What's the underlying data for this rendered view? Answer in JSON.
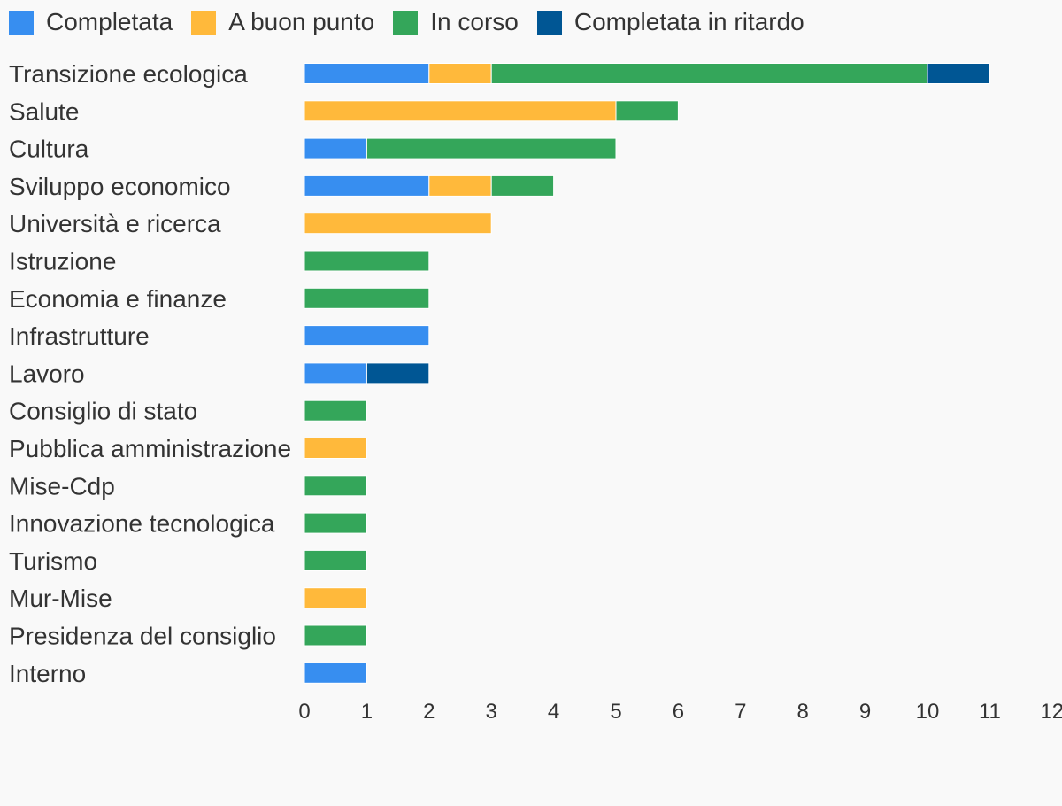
{
  "chart_data": {
    "type": "bar",
    "orientation": "horizontal",
    "stacked": true,
    "categories": [
      "Transizione ecologica",
      "Salute",
      "Cultura",
      "Sviluppo economico",
      "Università e ricerca",
      "Istruzione",
      "Economia e finanze",
      "Infrastrutture",
      "Lavoro",
      "Consiglio di stato",
      "Pubblica amministrazione",
      "Mise-Cdp",
      "Innovazione tecnologica",
      "Turismo",
      "Mur-Mise",
      "Presidenza del consiglio",
      "Interno"
    ],
    "series": [
      {
        "name": "Completata",
        "color": "#378ef0",
        "values": [
          2,
          0,
          1,
          2,
          0,
          0,
          0,
          2,
          1,
          0,
          0,
          0,
          0,
          0,
          0,
          0,
          1
        ]
      },
      {
        "name": "A buon punto",
        "color": "#ffb93b",
        "values": [
          1,
          5,
          0,
          1,
          3,
          0,
          0,
          0,
          0,
          0,
          1,
          0,
          0,
          0,
          1,
          0,
          0
        ]
      },
      {
        "name": "In corso",
        "color": "#34a65a",
        "values": [
          7,
          1,
          4,
          1,
          0,
          2,
          2,
          0,
          0,
          1,
          0,
          1,
          1,
          1,
          0,
          1,
          0
        ]
      },
      {
        "name": "Completata in ritardo",
        "color": "#005694",
        "values": [
          1,
          0,
          0,
          0,
          0,
          0,
          0,
          0,
          1,
          0,
          0,
          0,
          0,
          0,
          0,
          0,
          0
        ]
      }
    ],
    "xlim": [
      0,
      12
    ],
    "xticks": [
      0,
      1,
      2,
      3,
      4,
      5,
      6,
      7,
      8,
      9,
      10,
      11,
      12
    ],
    "grid": false,
    "legend_position": "top-left"
  }
}
